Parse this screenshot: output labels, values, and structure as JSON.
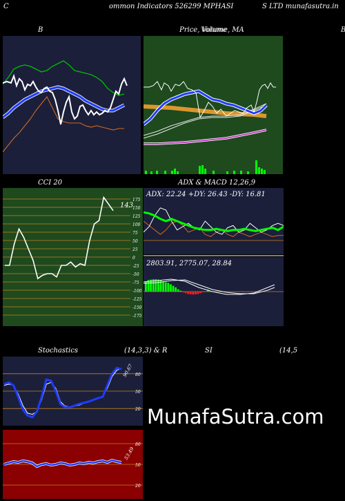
{
  "header": {
    "left": "C",
    "center": "ommon  Indicators 526299 MPHASI",
    "right": "S LTD munafasutra.in"
  },
  "titles": {
    "bb": "B",
    "price": "Price,  Volume,  MA",
    "price_overlap": "Volume",
    "right_edge": "B",
    "cci": "CCI 20",
    "adx_macd": "ADX  & MACD 12,26,9",
    "stoch": "Stochastics",
    "stoch_params": "(14,3,3) & R",
    "rsi": "SI",
    "rsi_params": "(14,5"
  },
  "cci": {
    "ticks": [
      "175",
      "150",
      "125",
      "100",
      "75",
      "50",
      "25",
      "0",
      "-25",
      "-50",
      "-75",
      "-100",
      "-125",
      "-150",
      "-175"
    ],
    "tick_values": [
      175,
      150,
      125,
      100,
      75,
      50,
      25,
      0,
      -25,
      -50,
      -75,
      -100,
      -125,
      -150,
      -175
    ],
    "current_label": "143",
    "values": [
      -25,
      -25,
      40,
      85,
      60,
      25,
      -10,
      -65,
      -55,
      -50,
      -50,
      -60,
      -25,
      -25,
      -15,
      -30,
      -20,
      -25,
      50,
      100,
      110,
      180,
      160,
      140
    ]
  },
  "adx": {
    "label": "ADX: 22.24   +DY: 26.43  -DY: 16.81",
    "adx_values": [
      38,
      37,
      35,
      32,
      30,
      32,
      30,
      28,
      26,
      24,
      23,
      22,
      22,
      23,
      22,
      21,
      22,
      22,
      23,
      22,
      21,
      22,
      23,
      24,
      22,
      25
    ],
    "pdi_values": [
      20,
      25,
      35,
      42,
      40,
      30,
      22,
      25,
      28,
      24,
      22,
      30,
      25,
      20,
      18,
      24,
      26,
      20,
      22,
      28,
      24,
      20,
      22,
      26,
      28,
      26
    ],
    "mdi_values": [
      30,
      26,
      22,
      18,
      22,
      28,
      30,
      26,
      20,
      22,
      24,
      18,
      16,
      20,
      22,
      18,
      16,
      20,
      18,
      16,
      18,
      20,
      18,
      16,
      17,
      17
    ]
  },
  "macd": {
    "label": "2803.91,   2775.07,   28.84",
    "hist": [
      50,
      60,
      62,
      64,
      64,
      62,
      58,
      52,
      48,
      45,
      38,
      30,
      22,
      12,
      5,
      -4,
      -8,
      -12,
      -14,
      -15,
      -14,
      -12,
      -8,
      -4,
      2,
      10
    ]
  },
  "stoch": {
    "current_label": "90.67",
    "ticks": [
      "80",
      "50",
      "20"
    ],
    "tick_values": [
      80,
      50,
      20
    ],
    "k_values": [
      62,
      65,
      60,
      40,
      18,
      8,
      5,
      15,
      40,
      70,
      68,
      50,
      28,
      22,
      22,
      25,
      28,
      30,
      32,
      35,
      38,
      40,
      60,
      80,
      90,
      88
    ],
    "d_values": [
      60,
      62,
      60,
      45,
      25,
      12,
      10,
      15,
      35,
      62,
      65,
      55,
      32,
      24,
      23,
      24,
      26,
      29,
      31,
      34,
      37,
      41,
      55,
      75,
      86,
      89
    ]
  },
  "rsi": {
    "current_label": "53.49",
    "ticks": [
      "80",
      "50",
      "20"
    ],
    "tick_values": [
      80,
      50,
      20
    ],
    "values": [
      50,
      52,
      54,
      53,
      55,
      54,
      52,
      47,
      50,
      51,
      49,
      50,
      52,
      51,
      49,
      50,
      52,
      51,
      53,
      52,
      54,
      55,
      53,
      56,
      54,
      53
    ]
  },
  "watermark": "MunafaSutra.com",
  "colors": {
    "bb_bg": "#1b1f3a",
    "price_bg": "#1e4a1e",
    "cci_bg": "#1e4a1e",
    "adx_bg": "#1b1f3a",
    "stoch_bg": "#1b1f3a",
    "rsi_bg": "#8b0000",
    "guide": "#c8821e"
  }
}
